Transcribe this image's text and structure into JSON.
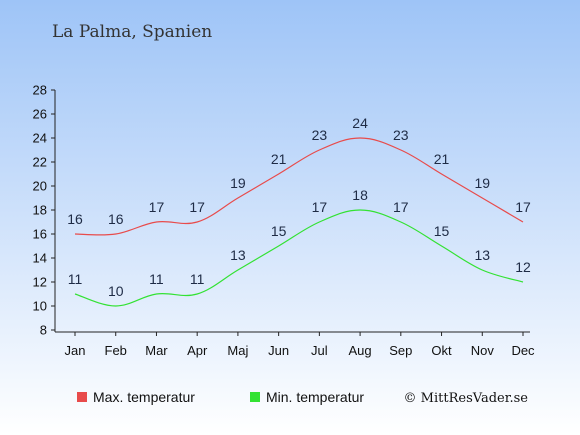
{
  "title": "La Palma, Spanien",
  "copyright": "© MittResVader.se",
  "colors": {
    "max": "#e84b4b",
    "min": "#33e233",
    "bg_top": "#9ec4f7",
    "bg_bottom": "#ffffff"
  },
  "legend": {
    "max_label": "Max. temperatur",
    "min_label": "Min. temperatur"
  },
  "chart_data": {
    "type": "line",
    "categories": [
      "Jan",
      "Feb",
      "Mar",
      "Apr",
      "Maj",
      "Jun",
      "Jul",
      "Aug",
      "Sep",
      "Okt",
      "Nov",
      "Dec"
    ],
    "series": [
      {
        "name": "Max. temperatur",
        "values": [
          16,
          16,
          17,
          17,
          19,
          21,
          23,
          24,
          23,
          21,
          19,
          17
        ]
      },
      {
        "name": "Min. temperatur",
        "values": [
          11,
          10,
          11,
          11,
          13,
          15,
          17,
          18,
          17,
          15,
          13,
          12
        ]
      }
    ],
    "yticks": [
      "8",
      "10",
      "12",
      "14",
      "16",
      "18",
      "20",
      "22",
      "24",
      "26",
      "28"
    ],
    "ylim": [
      8,
      28
    ],
    "grid": false,
    "legend_position": "bottom"
  }
}
